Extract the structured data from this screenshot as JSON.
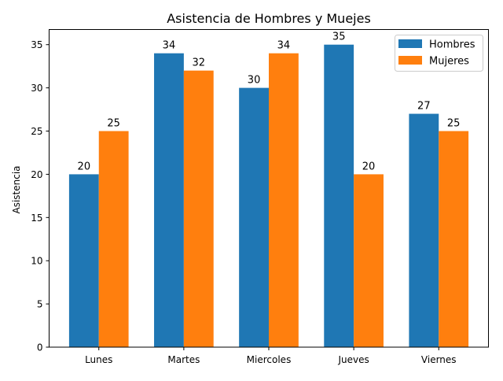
{
  "chart_data": {
    "type": "bar",
    "title": "Asistencia de Hombres y Muejes",
    "xlabel": "",
    "ylabel": "Asistencia",
    "categories": [
      "Lunes",
      "Martes",
      "Miercoles",
      "Jueves",
      "Viernes"
    ],
    "series": [
      {
        "name": "Hombres",
        "values": [
          20,
          34,
          30,
          35,
          27
        ],
        "color": "#1f77b4"
      },
      {
        "name": "Mujeres",
        "values": [
          25,
          32,
          34,
          20,
          25
        ],
        "color": "#ff7f0e"
      }
    ],
    "ylim": [
      0,
      36.75
    ],
    "yticks": [
      0,
      5,
      10,
      15,
      20,
      25,
      30,
      35
    ],
    "grid": false,
    "legend": "top-right",
    "data_labels": true
  }
}
